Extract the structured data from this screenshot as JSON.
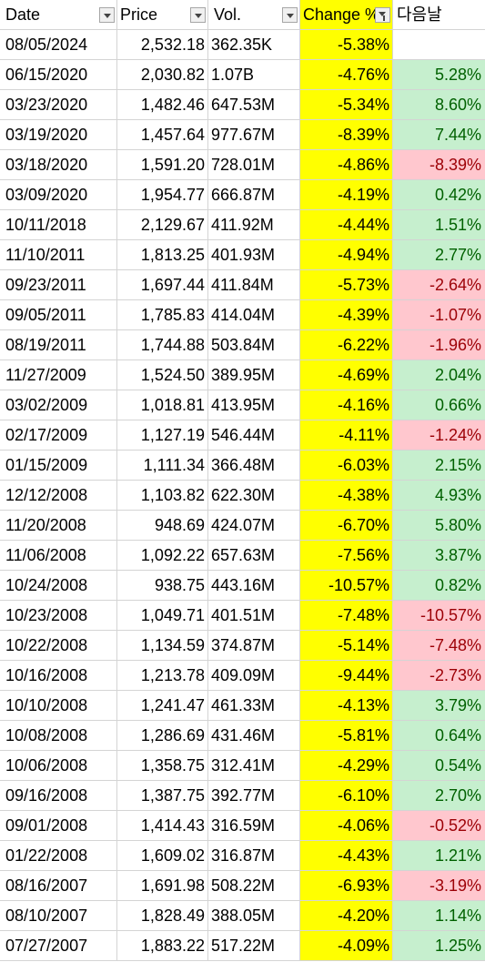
{
  "colors": {
    "change_fill": "#ffff00",
    "up_fill": "#c6efce",
    "up_text": "#006100",
    "down_fill": "#ffc7ce",
    "down_text": "#9c0006",
    "grid": "#d4d4d4"
  },
  "header": {
    "date": "Date",
    "price": "Price",
    "vol": "Vol.",
    "change": "Change %",
    "next": "다음날"
  },
  "rows": [
    {
      "date": "08/05/2024",
      "price": "2,532.18",
      "vol": "362.35K",
      "change": "-5.38%",
      "next": "",
      "dir": ""
    },
    {
      "date": "06/15/2020",
      "price": "2,030.82",
      "vol": "1.07B",
      "change": "-4.76%",
      "next": "5.28%",
      "dir": "up"
    },
    {
      "date": "03/23/2020",
      "price": "1,482.46",
      "vol": "647.53M",
      "change": "-5.34%",
      "next": "8.60%",
      "dir": "up"
    },
    {
      "date": "03/19/2020",
      "price": "1,457.64",
      "vol": "977.67M",
      "change": "-8.39%",
      "next": "7.44%",
      "dir": "up"
    },
    {
      "date": "03/18/2020",
      "price": "1,591.20",
      "vol": "728.01M",
      "change": "-4.86%",
      "next": "-8.39%",
      "dir": "down"
    },
    {
      "date": "03/09/2020",
      "price": "1,954.77",
      "vol": "666.87M",
      "change": "-4.19%",
      "next": "0.42%",
      "dir": "up"
    },
    {
      "date": "10/11/2018",
      "price": "2,129.67",
      "vol": "411.92M",
      "change": "-4.44%",
      "next": "1.51%",
      "dir": "up"
    },
    {
      "date": "11/10/2011",
      "price": "1,813.25",
      "vol": "401.93M",
      "change": "-4.94%",
      "next": "2.77%",
      "dir": "up"
    },
    {
      "date": "09/23/2011",
      "price": "1,697.44",
      "vol": "411.84M",
      "change": "-5.73%",
      "next": "-2.64%",
      "dir": "down"
    },
    {
      "date": "09/05/2011",
      "price": "1,785.83",
      "vol": "414.04M",
      "change": "-4.39%",
      "next": "-1.07%",
      "dir": "down"
    },
    {
      "date": "08/19/2011",
      "price": "1,744.88",
      "vol": "503.84M",
      "change": "-6.22%",
      "next": "-1.96%",
      "dir": "down"
    },
    {
      "date": "11/27/2009",
      "price": "1,524.50",
      "vol": "389.95M",
      "change": "-4.69%",
      "next": "2.04%",
      "dir": "up"
    },
    {
      "date": "03/02/2009",
      "price": "1,018.81",
      "vol": "413.95M",
      "change": "-4.16%",
      "next": "0.66%",
      "dir": "up"
    },
    {
      "date": "02/17/2009",
      "price": "1,127.19",
      "vol": "546.44M",
      "change": "-4.11%",
      "next": "-1.24%",
      "dir": "down"
    },
    {
      "date": "01/15/2009",
      "price": "1,111.34",
      "vol": "366.48M",
      "change": "-6.03%",
      "next": "2.15%",
      "dir": "up"
    },
    {
      "date": "12/12/2008",
      "price": "1,103.82",
      "vol": "622.30M",
      "change": "-4.38%",
      "next": "4.93%",
      "dir": "up"
    },
    {
      "date": "11/20/2008",
      "price": "948.69",
      "vol": "424.07M",
      "change": "-6.70%",
      "next": "5.80%",
      "dir": "up"
    },
    {
      "date": "11/06/2008",
      "price": "1,092.22",
      "vol": "657.63M",
      "change": "-7.56%",
      "next": "3.87%",
      "dir": "up"
    },
    {
      "date": "10/24/2008",
      "price": "938.75",
      "vol": "443.16M",
      "change": "-10.57%",
      "next": "0.82%",
      "dir": "up"
    },
    {
      "date": "10/23/2008",
      "price": "1,049.71",
      "vol": "401.51M",
      "change": "-7.48%",
      "next": "-10.57%",
      "dir": "down"
    },
    {
      "date": "10/22/2008",
      "price": "1,134.59",
      "vol": "374.87M",
      "change": "-5.14%",
      "next": "-7.48%",
      "dir": "down"
    },
    {
      "date": "10/16/2008",
      "price": "1,213.78",
      "vol": "409.09M",
      "change": "-9.44%",
      "next": "-2.73%",
      "dir": "down"
    },
    {
      "date": "10/10/2008",
      "price": "1,241.47",
      "vol": "461.33M",
      "change": "-4.13%",
      "next": "3.79%",
      "dir": "up"
    },
    {
      "date": "10/08/2008",
      "price": "1,286.69",
      "vol": "431.46M",
      "change": "-5.81%",
      "next": "0.64%",
      "dir": "up"
    },
    {
      "date": "10/06/2008",
      "price": "1,358.75",
      "vol": "312.41M",
      "change": "-4.29%",
      "next": "0.54%",
      "dir": "up"
    },
    {
      "date": "09/16/2008",
      "price": "1,387.75",
      "vol": "392.77M",
      "change": "-6.10%",
      "next": "2.70%",
      "dir": "up"
    },
    {
      "date": "09/01/2008",
      "price": "1,414.43",
      "vol": "316.59M",
      "change": "-4.06%",
      "next": "-0.52%",
      "dir": "down"
    },
    {
      "date": "01/22/2008",
      "price": "1,609.02",
      "vol": "316.87M",
      "change": "-4.43%",
      "next": "1.21%",
      "dir": "up"
    },
    {
      "date": "08/16/2007",
      "price": "1,691.98",
      "vol": "508.22M",
      "change": "-6.93%",
      "next": "-3.19%",
      "dir": "down"
    },
    {
      "date": "08/10/2007",
      "price": "1,828.49",
      "vol": "388.05M",
      "change": "-4.20%",
      "next": "1.14%",
      "dir": "up"
    },
    {
      "date": "07/27/2007",
      "price": "1,883.22",
      "vol": "517.22M",
      "change": "-4.09%",
      "next": "1.25%",
      "dir": "up"
    }
  ]
}
